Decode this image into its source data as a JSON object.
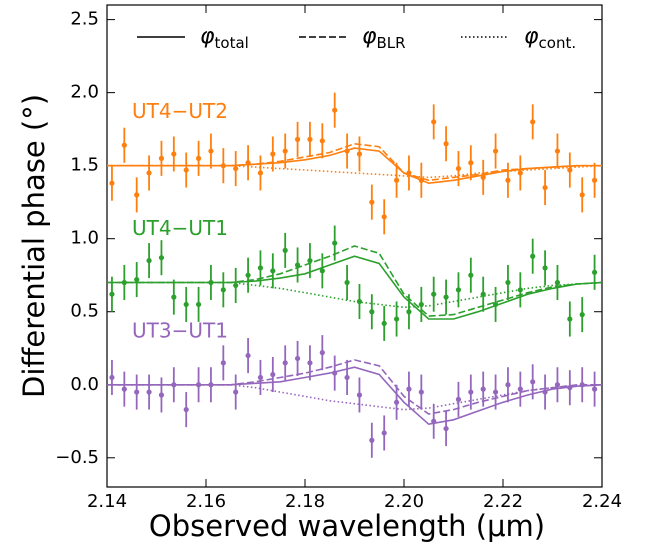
{
  "chart_data": {
    "type": "errorbar",
    "xlabel": "Observed wavelength (μm)",
    "ylabel": "Differential phase (°)",
    "xlim": [
      2.14,
      2.24
    ],
    "ylim": [
      -0.7,
      2.6
    ],
    "xticks": [
      2.14,
      2.16,
      2.18,
      {
        "value": 2.2,
        "label": "2.20"
      },
      2.22,
      2.24
    ],
    "yticks": [
      {
        "value": -0.5,
        "label": "−0.5"
      },
      {
        "value": 0,
        "label": "0.0"
      },
      0.5,
      {
        "value": 1,
        "label": "1.0"
      },
      1.5,
      {
        "value": 2,
        "label": "2.0"
      },
      2.5
    ],
    "legend": [
      {
        "symbol": "φ",
        "sub": "total",
        "style": "solid"
      },
      {
        "symbol": "φ",
        "sub": "BLR",
        "style": "dashed"
      },
      {
        "symbol": "φ",
        "sub": "cont.",
        "style": "dotted"
      }
    ],
    "x": [
      2.141,
      2.1435,
      2.146,
      2.1485,
      2.151,
      2.1535,
      2.156,
      2.1585,
      2.161,
      2.1635,
      2.166,
      2.1685,
      2.171,
      2.1735,
      2.176,
      2.1785,
      2.181,
      2.1835,
      2.186,
      2.1885,
      2.191,
      2.1935,
      2.196,
      2.1985,
      2.201,
      2.2035,
      2.206,
      2.2085,
      2.211,
      2.2135,
      2.216,
      2.2185,
      2.221,
      2.2235,
      2.226,
      2.2285,
      2.231,
      2.2335,
      2.236,
      2.2385
    ],
    "model_x": [
      2.14,
      2.145,
      2.15,
      2.155,
      2.16,
      2.165,
      2.17,
      2.175,
      2.18,
      2.185,
      2.19,
      2.195,
      2.2,
      2.205,
      2.21,
      2.215,
      2.22,
      2.225,
      2.23,
      2.235,
      2.24
    ],
    "series": [
      {
        "name": "UT4−UT2",
        "color": "#ff7f0e",
        "values": [
          1.38,
          1.64,
          1.3,
          1.45,
          1.55,
          1.58,
          1.47,
          1.55,
          1.6,
          1.5,
          1.48,
          1.52,
          1.45,
          1.58,
          1.6,
          1.68,
          1.68,
          1.67,
          1.88,
          1.6,
          1.58,
          1.25,
          1.15,
          1.4,
          1.45,
          1.4,
          1.8,
          1.65,
          1.48,
          1.52,
          1.42,
          1.6,
          1.4,
          1.45,
          1.8,
          1.35,
          1.6,
          1.47,
          1.3,
          1.4
        ],
        "errors": [
          0.12,
          0.12,
          0.12,
          0.12,
          0.12,
          0.12,
          0.12,
          0.12,
          0.12,
          0.12,
          0.12,
          0.12,
          0.12,
          0.12,
          0.12,
          0.12,
          0.12,
          0.12,
          0.12,
          0.12,
          0.12,
          0.12,
          0.12,
          0.12,
          0.12,
          0.12,
          0.12,
          0.12,
          0.12,
          0.12,
          0.12,
          0.12,
          0.12,
          0.12,
          0.12,
          0.12,
          0.12,
          0.12,
          0.12,
          0.12
        ],
        "models": [
          [
            1.5,
            1.5,
            1.5,
            1.5,
            1.5,
            1.5,
            1.51,
            1.52,
            1.54,
            1.57,
            1.62,
            1.6,
            1.45,
            1.38,
            1.4,
            1.43,
            1.46,
            1.48,
            1.49,
            1.5,
            1.5
          ],
          [
            1.5,
            1.5,
            1.5,
            1.5,
            1.5,
            1.5,
            1.51,
            1.53,
            1.56,
            1.59,
            1.65,
            1.63,
            1.45,
            1.4,
            1.42,
            1.44,
            1.47,
            1.48,
            1.49,
            1.5,
            1.5
          ],
          [
            1.5,
            1.5,
            1.5,
            1.5,
            1.5,
            1.5,
            1.49,
            1.48,
            1.47,
            1.46,
            1.45,
            1.44,
            1.43,
            1.42,
            1.43,
            1.45,
            1.46,
            1.47,
            1.48,
            1.49,
            1.5
          ]
        ]
      },
      {
        "name": "UT4−UT1",
        "color": "#2ca02c",
        "values": [
          0.62,
          0.7,
          0.72,
          0.85,
          0.87,
          0.6,
          0.55,
          0.55,
          0.7,
          0.65,
          0.68,
          0.75,
          0.8,
          0.78,
          0.92,
          0.82,
          0.85,
          0.78,
          0.97,
          0.7,
          0.57,
          0.5,
          0.42,
          0.45,
          0.5,
          0.55,
          0.62,
          0.6,
          0.65,
          0.75,
          0.62,
          0.55,
          0.7,
          0.65,
          0.88,
          0.8,
          0.7,
          0.45,
          0.48,
          0.77
        ],
        "errors": [
          0.12,
          0.12,
          0.12,
          0.12,
          0.12,
          0.12,
          0.12,
          0.12,
          0.12,
          0.12,
          0.12,
          0.12,
          0.12,
          0.12,
          0.12,
          0.12,
          0.12,
          0.12,
          0.12,
          0.12,
          0.12,
          0.12,
          0.12,
          0.12,
          0.12,
          0.12,
          0.12,
          0.12,
          0.12,
          0.12,
          0.12,
          0.12,
          0.12,
          0.12,
          0.12,
          0.12,
          0.12,
          0.12,
          0.12,
          0.12
        ],
        "models": [
          [
            0.7,
            0.7,
            0.7,
            0.7,
            0.7,
            0.7,
            0.71,
            0.73,
            0.76,
            0.82,
            0.88,
            0.83,
            0.6,
            0.45,
            0.45,
            0.5,
            0.56,
            0.62,
            0.66,
            0.69,
            0.7
          ],
          [
            0.7,
            0.7,
            0.7,
            0.7,
            0.7,
            0.7,
            0.72,
            0.76,
            0.82,
            0.88,
            0.95,
            0.9,
            0.62,
            0.47,
            0.48,
            0.53,
            0.58,
            0.63,
            0.67,
            0.69,
            0.7
          ],
          [
            0.7,
            0.7,
            0.7,
            0.7,
            0.7,
            0.7,
            0.68,
            0.66,
            0.63,
            0.6,
            0.57,
            0.55,
            0.53,
            0.54,
            0.57,
            0.6,
            0.63,
            0.66,
            0.68,
            0.69,
            0.7
          ]
        ]
      },
      {
        "name": "UT3−UT1",
        "color": "#9467bd",
        "values": [
          0.05,
          -0.03,
          -0.05,
          -0.05,
          -0.07,
          0.0,
          -0.17,
          0.0,
          0.0,
          0.15,
          -0.05,
          0.2,
          0.05,
          0.07,
          0.15,
          0.18,
          0.15,
          0.22,
          0.08,
          0.05,
          -0.07,
          -0.38,
          -0.33,
          -0.12,
          -0.03,
          -0.05,
          -0.25,
          -0.3,
          -0.1,
          -0.05,
          -0.03,
          -0.05,
          0.0,
          -0.03,
          0.02,
          -0.05,
          0.0,
          -0.02,
          0.0,
          -0.03
        ],
        "errors": [
          0.12,
          0.12,
          0.12,
          0.12,
          0.12,
          0.12,
          0.12,
          0.12,
          0.12,
          0.12,
          0.12,
          0.12,
          0.12,
          0.12,
          0.12,
          0.12,
          0.12,
          0.12,
          0.12,
          0.12,
          0.12,
          0.12,
          0.12,
          0.12,
          0.12,
          0.12,
          0.12,
          0.12,
          0.12,
          0.12,
          0.12,
          0.12,
          0.12,
          0.12,
          0.12,
          0.12,
          0.12,
          0.12,
          0.12,
          0.12
        ],
        "models": [
          [
            0,
            0,
            0,
            0,
            0,
            0,
            0.01,
            0.02,
            0.05,
            0.08,
            0.12,
            0.07,
            -0.12,
            -0.27,
            -0.24,
            -0.18,
            -0.12,
            -0.07,
            -0.03,
            -0.01,
            0
          ],
          [
            0,
            0,
            0,
            0,
            0,
            0,
            0.02,
            0.05,
            0.08,
            0.12,
            0.17,
            0.13,
            -0.08,
            -0.2,
            -0.17,
            -0.12,
            -0.08,
            -0.04,
            -0.02,
            0,
            0
          ],
          [
            0,
            0,
            0,
            0,
            0,
            0,
            -0.02,
            -0.05,
            -0.08,
            -0.11,
            -0.13,
            -0.15,
            -0.17,
            -0.16,
            -0.13,
            -0.1,
            -0.07,
            -0.04,
            -0.02,
            -0.01,
            0
          ]
        ]
      }
    ]
  }
}
